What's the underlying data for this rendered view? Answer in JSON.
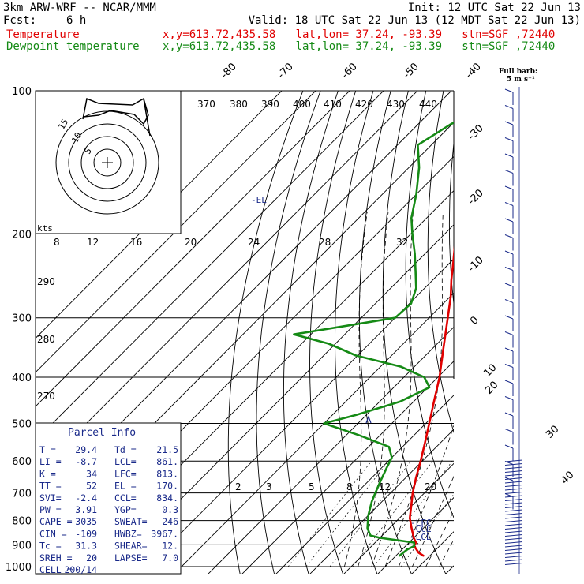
{
  "header": {
    "model": "3km ARW-WRF -- NCAR/MMM",
    "init": "Init: 12 UTC Sat 22 Jun 13",
    "fcst_label": "Fcst:",
    "fcst_value": "6 h",
    "valid": "Valid: 18 UTC Sat 22 Jun 13 (12 MDT Sat 22 Jun 13)",
    "temp_label": "Temperature",
    "dew_label": "Dewpoint temperature",
    "location": "x,y=613.72,435.58   lat,lon= 37.24, -93.39   stn=SGF ,72440"
  },
  "barb_legend": {
    "line1": "Full barb:",
    "line2": "5 m s⁻¹"
  },
  "hodograph": {
    "units": "kts",
    "rings": [
      "5",
      "10",
      "15"
    ]
  },
  "parcel_info": {
    "title": "Parcel  Info",
    "rows": [
      [
        "T  =",
        "29.4",
        "Td =",
        "21.5"
      ],
      [
        "LI =",
        "-8.7",
        "LCL=",
        "861."
      ],
      [
        "K  =",
        "34",
        "LFC=",
        "813."
      ],
      [
        "TT =",
        "52",
        "EL =",
        "170."
      ],
      [
        "SVI=",
        "-2.4",
        "CCL=",
        "834."
      ],
      [
        "PW =",
        "3.91",
        "YGP=",
        "0.3"
      ],
      [
        "CAPE =",
        "3035",
        "SWEAT=",
        "246"
      ],
      [
        "CIN =",
        "-109",
        "HWBZ=",
        "3967."
      ],
      [
        "Tc =",
        "31.3",
        "SHEAR=",
        "12."
      ],
      [
        "SREH =",
        "20",
        "LAPSE=",
        "7.0"
      ],
      [
        "CELL =",
        "200/14",
        "",
        ""
      ]
    ]
  },
  "chart_data": {
    "type": "line",
    "title": "",
    "y_scale": "log",
    "ylim": [
      1000,
      100
    ],
    "pressure_ticks": [
      "100",
      "200",
      "300",
      "400",
      "500",
      "600",
      "700",
      "800",
      "900",
      "1000"
    ],
    "isotherm_labels": [
      "-80",
      "-70",
      "-60",
      "-50",
      "-40",
      "-30",
      "-20",
      "-10",
      "0",
      "10",
      "20",
      "30",
      "40"
    ],
    "theta_labels": [
      "370",
      "380",
      "390",
      "400",
      "410",
      "420",
      "430",
      "440"
    ],
    "theta_left_labels": [
      "290",
      "280",
      "270"
    ],
    "thetae_labels": [
      "8",
      "12",
      "16",
      "20",
      "24",
      "28",
      "32"
    ],
    "mixing_ratio_labels": [
      "2",
      "3",
      "5",
      "8",
      "12",
      "20"
    ],
    "level_labels": {
      "el": "EL",
      "lfc": "LFC",
      "ccl": "CCL",
      "lcl": "LCL"
    },
    "series": [
      {
        "name": "Temperature",
        "color": "#e00000",
        "p": [
          950,
          935,
          905,
          890,
          870,
          830,
          790,
          740,
          700,
          650,
          600,
          550,
          500,
          450,
          400,
          350,
          300,
          270,
          250,
          230,
          210,
          200,
          185,
          170,
          155,
          140,
          125,
          115,
          108,
          100
        ],
        "t": [
          28.3,
          25.8,
          22.5,
          22.0,
          20.0,
          16.5,
          13.0,
          9.5,
          6.5,
          3.0,
          -0.5,
          -4.5,
          -9.0,
          -14.0,
          -19.5,
          -26.5,
          -34.5,
          -40.0,
          -44.5,
          -49.0,
          -54.0,
          -56.5,
          -60.0,
          -62.5,
          -64.5,
          -66.5,
          -68.5,
          -69.5,
          -69.0,
          -68.5
        ]
      },
      {
        "name": "Dewpoint temperature",
        "color": "#158a15",
        "p": [
          950,
          920,
          905,
          890,
          870,
          860,
          830,
          780,
          730,
          700,
          660,
          620,
          590,
          560,
          530,
          500,
          480,
          450,
          420,
          400,
          380,
          360,
          340,
          325,
          300,
          280,
          260,
          240,
          220,
          200,
          185,
          165,
          145,
          130,
          118,
          108,
          100
        ],
        "t": [
          21.0,
          21.5,
          22.5,
          21.5,
          10.0,
          6.5,
          3.5,
          0.0,
          -3.0,
          -4.5,
          -6.5,
          -8.5,
          -10.0,
          -14.0,
          -26.0,
          -40.0,
          -33.0,
          -24.0,
          -19.5,
          -24.0,
          -34.0,
          -50.5,
          -62.0,
          -75.0,
          -50.0,
          -49.5,
          -52.5,
          -57.5,
          -63.0,
          -69.5,
          -74.5,
          -80.0,
          -87.0,
          -94.0,
          -90.5,
          -86.5,
          -84.0
        ]
      }
    ]
  }
}
